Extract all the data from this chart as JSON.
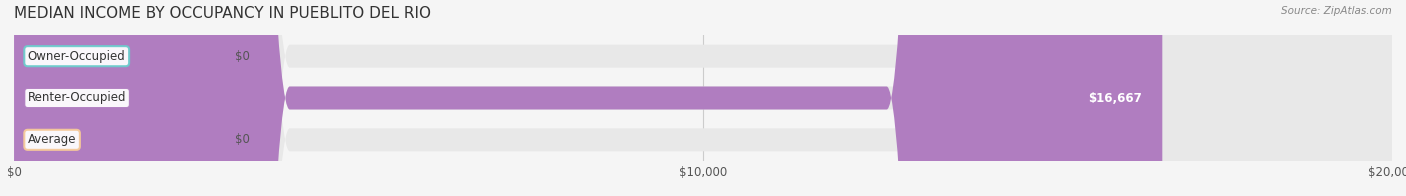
{
  "title": "MEDIAN INCOME BY OCCUPANCY IN PUEBLITO DEL RIO",
  "source": "Source: ZipAtlas.com",
  "categories": [
    "Owner-Occupied",
    "Renter-Occupied",
    "Average"
  ],
  "values": [
    0,
    16667,
    0
  ],
  "bar_colors": [
    "#6dcbcc",
    "#b07dc0",
    "#f5c99a"
  ],
  "label_colors": [
    "#6dcbcc",
    "#b07dc0",
    "#f5c99a"
  ],
  "value_labels": [
    "$0",
    "$16,667",
    "$0"
  ],
  "x_ticks": [
    0,
    10000,
    20000
  ],
  "x_tick_labels": [
    "$0",
    "$10,000",
    "$20,000"
  ],
  "xlim": [
    0,
    20000
  ],
  "background_color": "#f5f5f5",
  "bar_background_color": "#e8e8e8",
  "title_fontsize": 11,
  "bar_height": 0.55,
  "figsize": [
    14.06,
    1.96
  ],
  "dpi": 100
}
